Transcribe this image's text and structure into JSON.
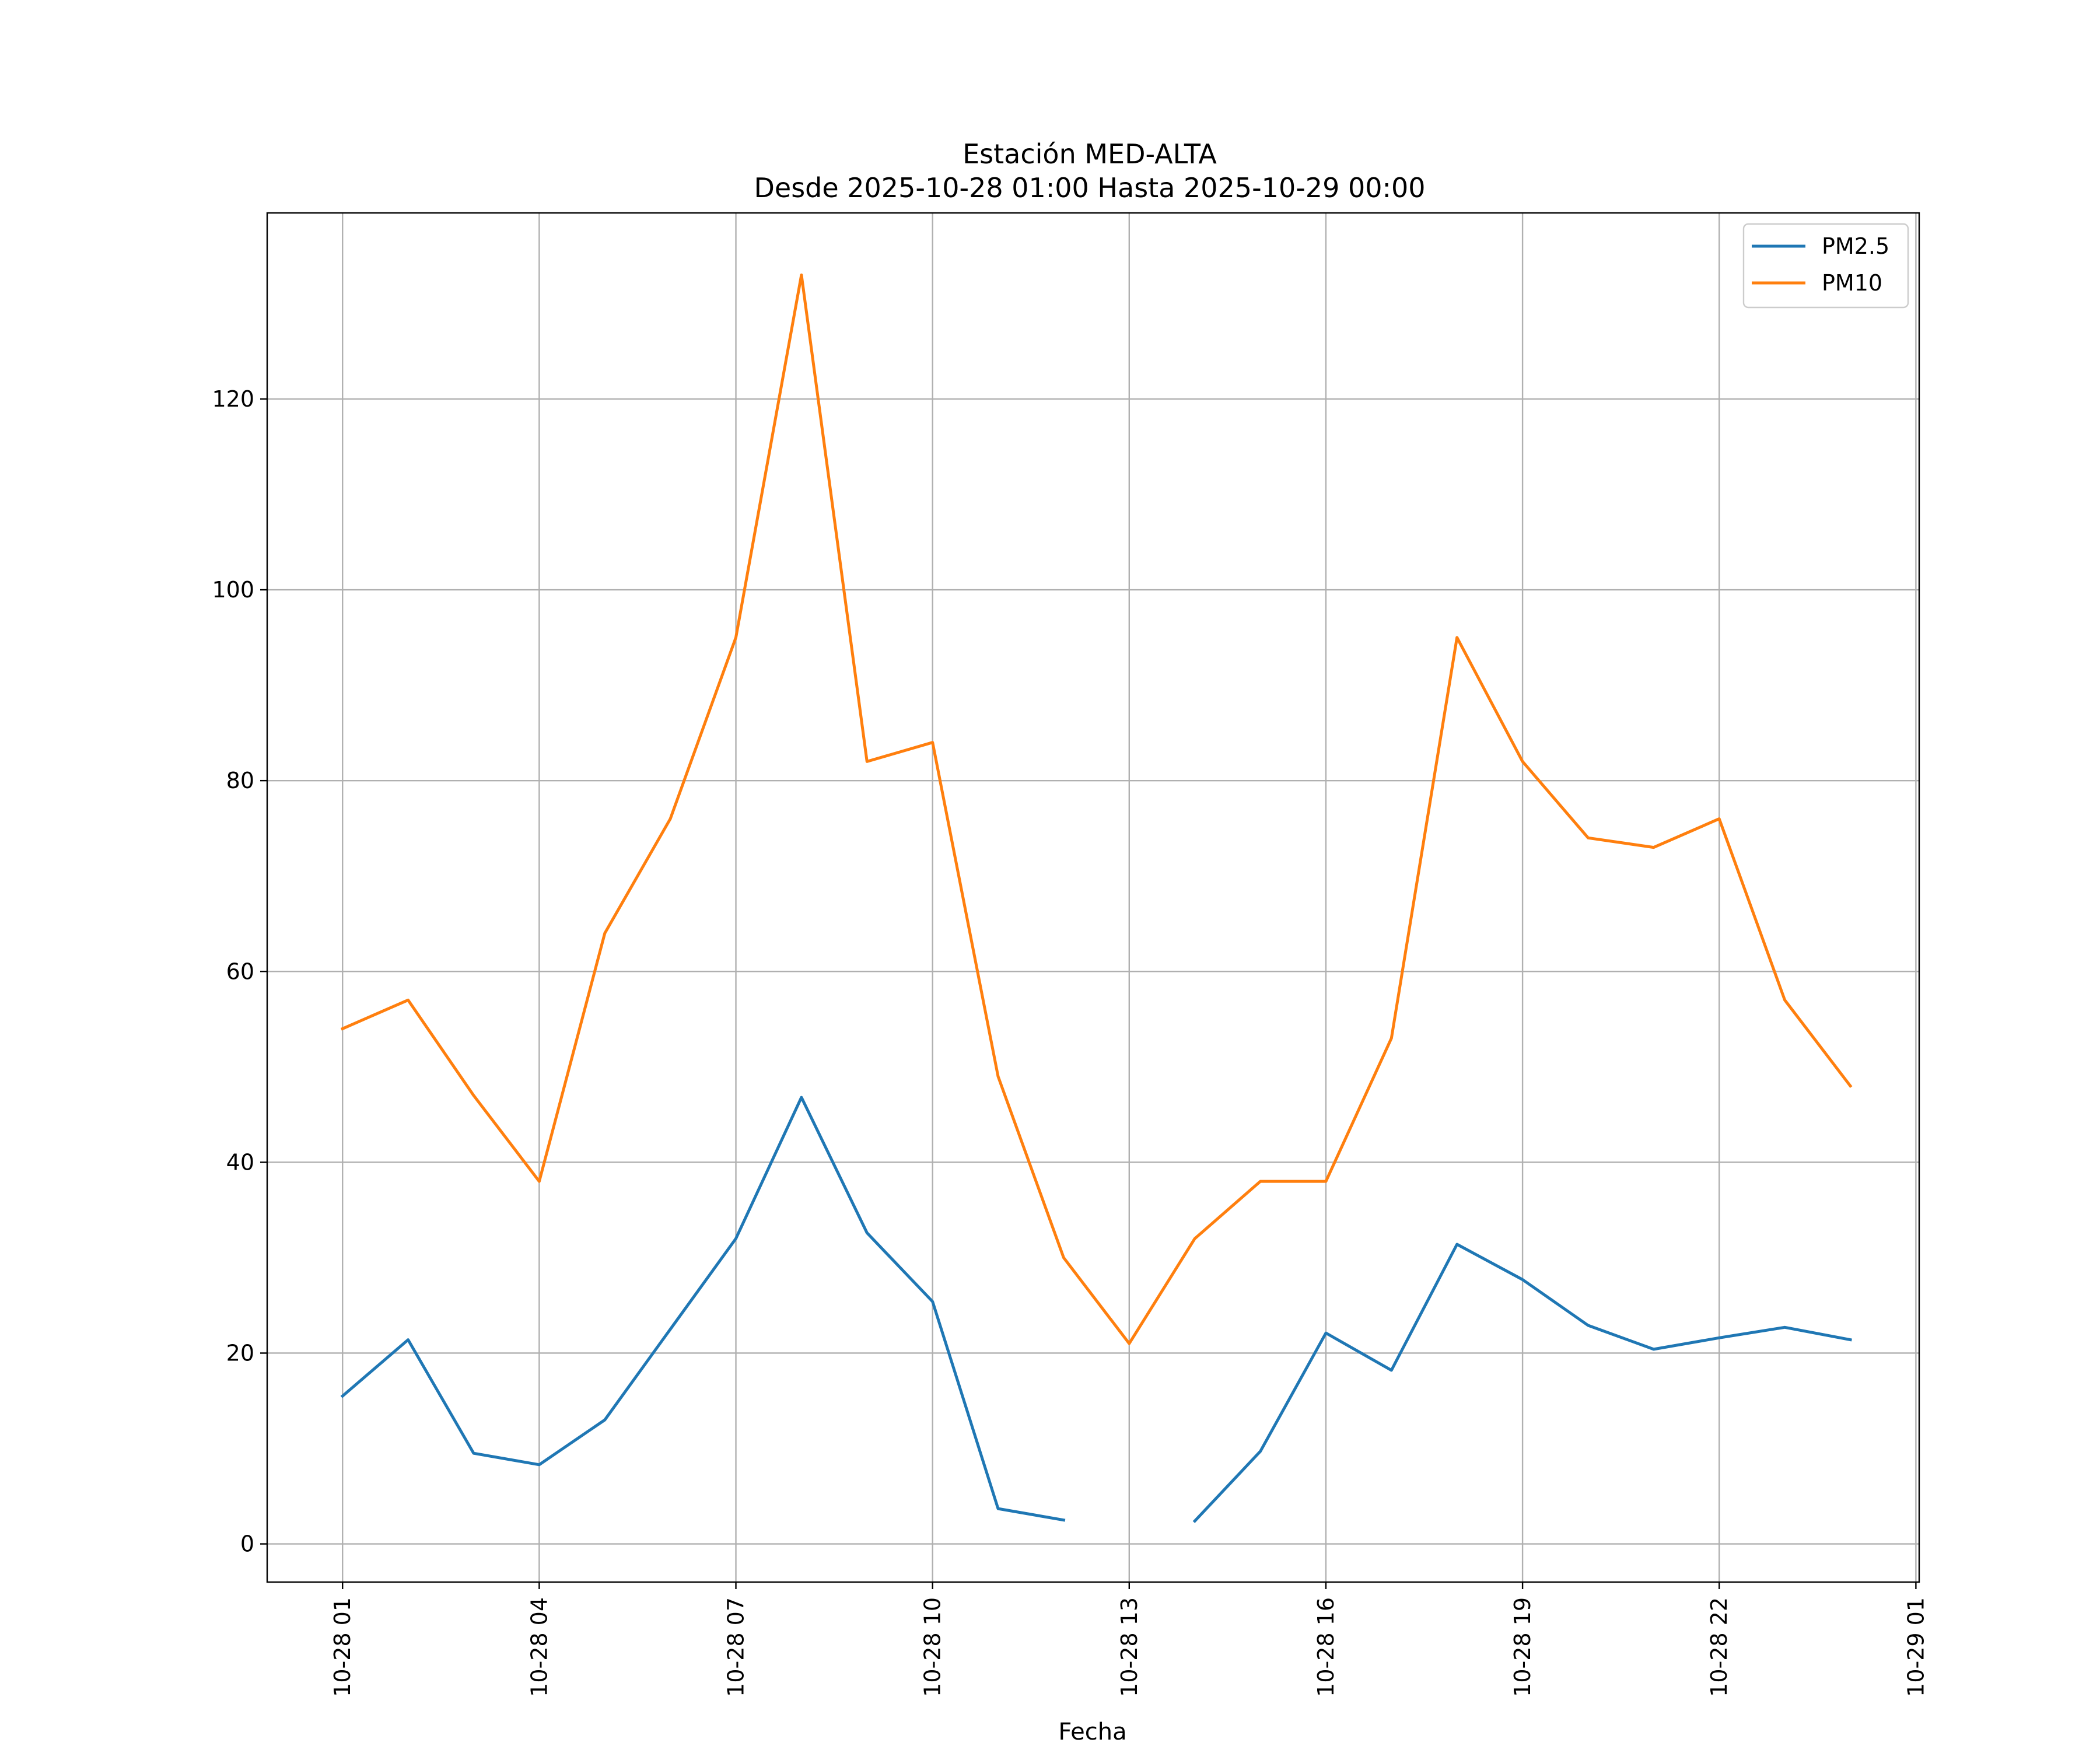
{
  "chart_data": {
    "type": "line",
    "title": "Estación MED-ALTA",
    "subtitle": "Desde 2025-10-28 01:00 Hasta 2025-10-29 00:00",
    "xlabel": "Fecha",
    "ylabel": "",
    "x_ticks": [
      "10-28 01",
      "10-28 04",
      "10-28 07",
      "10-28 10",
      "10-28 13",
      "10-28 16",
      "10-28 19",
      "10-28 22",
      "10-29 01"
    ],
    "y_ticks": [
      0,
      20,
      40,
      60,
      80,
      100,
      120
    ],
    "x_hours": [
      1,
      2,
      3,
      4,
      5,
      6,
      7,
      8,
      9,
      10,
      11,
      12,
      13,
      14,
      15,
      16,
      17,
      18,
      19,
      20,
      21,
      22,
      23,
      24
    ],
    "xlim_hours": [
      -0.15,
      25.05
    ],
    "ylim": [
      -4,
      139.5
    ],
    "grid": true,
    "legend_position": "top-right",
    "series": [
      {
        "name": "PM2.5",
        "color": "#1f77b4",
        "values": [
          15.5,
          21.4,
          9.5,
          8.3,
          13.0,
          22.5,
          32.0,
          46.8,
          32.6,
          25.4,
          3.7,
          2.5,
          null,
          2.4,
          9.7,
          22.1,
          18.2,
          31.4,
          27.7,
          22.9,
          20.4,
          21.6,
          22.7,
          21.4
        ]
      },
      {
        "name": "PM10",
        "color": "#ff7f0e",
        "values": [
          54,
          57,
          47,
          38,
          64,
          76,
          95,
          133,
          82,
          84,
          49,
          30,
          21,
          32,
          38,
          38,
          53,
          95,
          82,
          74,
          73,
          76,
          57,
          48
        ]
      }
    ]
  }
}
